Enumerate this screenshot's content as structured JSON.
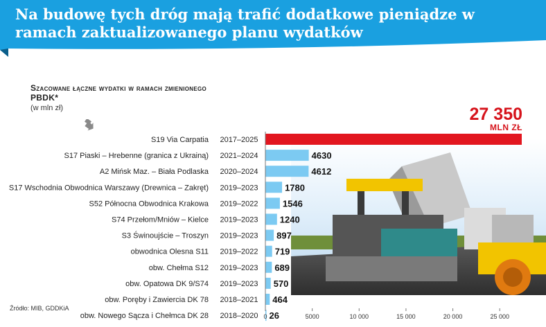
{
  "banner": {
    "title": "Na budowę tych dróg mają trafić dodatkowe pieniądze w ramach zaktualizowanego planu wydatków"
  },
  "subtitle": "Szacowane łączne wydatki w ramach zmienionego PBDK*",
  "unit": "(w mln zł)",
  "total": {
    "value": "27 350",
    "unit": "MLN ZŁ"
  },
  "source": "Źródło: MIB, GDDKiA",
  "colors": {
    "banner": "#1aa0e0",
    "bar": "#7ccaf2",
    "highlight": "#e2161f"
  },
  "chart_data": {
    "type": "bar",
    "orientation": "horizontal",
    "categories": [
      "S19 Via Carpatia",
      "S17 Piaski – Hrebenne (granica z Ukrainą)",
      "A2 Mińsk Maz. – Biała Podlaska",
      "S17 Wschodnia Obwodnica Warszawy (Drewnica – Zakręt)",
      "S52 Północna Obwodnica Krakowa",
      "S74 Przełom/Mniów – Kielce",
      "S3 Świnoujście – Troszyn",
      "obwodnica Olesna S11",
      "obw. Chełma S12",
      "obw. Opatowa DK 9/S74",
      "obw. Poręby i Zawiercia DK 78",
      "obw. Nowego Sącza i Chełmca DK 28"
    ],
    "periods": [
      "2017–2025",
      "2021–2024",
      "2020–2024",
      "2019–2023",
      "2019–2022",
      "2019–2023",
      "2019–2023",
      "2019–2022",
      "2019–2023",
      "2019–2023",
      "2018–2021",
      "2018–2020"
    ],
    "values": [
      27350,
      4630,
      4612,
      1780,
      1546,
      1240,
      897,
      719,
      689,
      570,
      464,
      26
    ],
    "value_labels": [
      "",
      "4630",
      "4612",
      "1780",
      "1546",
      "1240",
      "897",
      "719",
      "689",
      "570",
      "464",
      "26"
    ],
    "highlight_index": 0,
    "xticks": [
      0,
      5000,
      10000,
      15000,
      20000,
      25000
    ],
    "xtick_labels": [
      "0",
      "5000",
      "10 000",
      "15 000",
      "20 000",
      "25 000"
    ],
    "xlim": [
      0,
      27350
    ]
  }
}
